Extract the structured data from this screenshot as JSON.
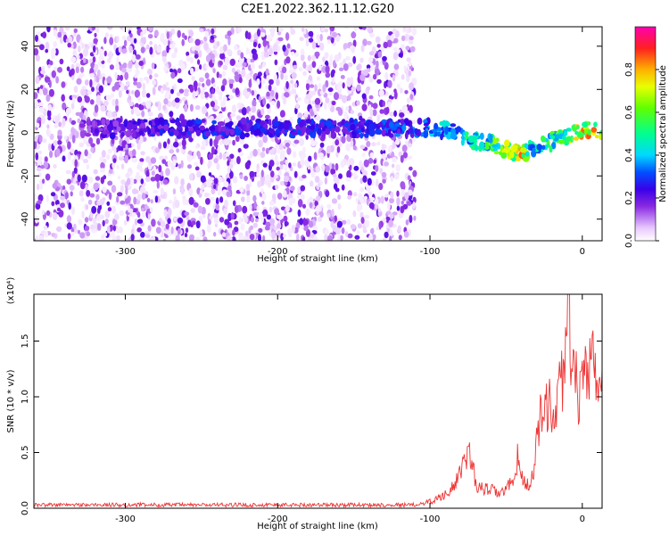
{
  "title": "C2E1.2022.362.11.12.G20",
  "chart_data": [
    {
      "type": "heatmap",
      "xlabel": "Height of straight line (km)",
      "ylabel": "Frequency (Hz)",
      "xlim": [
        -360,
        13
      ],
      "ylim": [
        -50,
        49
      ],
      "xticks": [
        -300,
        -200,
        -100,
        0
      ],
      "yticks": [
        -40,
        -20,
        0,
        20,
        40
      ],
      "colorbar": {
        "label": "Normalized spectral amplitude",
        "range": [
          0,
          1
        ],
        "ticks": [
          "0.0",
          "0.2",
          "0.4",
          "0.6",
          "0.8"
        ],
        "colormap": "rainbow (white → purple → blue → cyan → green → yellow → red)"
      },
      "ridge": {
        "x": [
          -330,
          -300,
          -250,
          -200,
          -150,
          -110,
          -100,
          -90,
          -80,
          -70,
          -60,
          -50,
          -40,
          -35,
          -30,
          -20,
          -10,
          0,
          13
        ],
        "frequency": [
          2,
          2,
          2,
          2,
          2,
          2,
          2,
          1,
          -1,
          -4,
          -5,
          -8,
          -10,
          -8,
          -6,
          -4,
          -2,
          1,
          1
        ],
        "amplitude": [
          0.2,
          0.25,
          0.3,
          0.3,
          0.3,
          0.35,
          0.4,
          0.45,
          0.5,
          0.55,
          0.6,
          0.75,
          0.9,
          0.55,
          0.5,
          0.6,
          0.7,
          0.85,
          0.9
        ]
      },
      "noise_region_x": [
        -360,
        -110
      ]
    },
    {
      "type": "line",
      "xlabel": "Height of straight line (km)",
      "ylabel": "SNR (10 * v/v)",
      "y_multiplier": "(x10⁴)",
      "xlim": [
        -360,
        13
      ],
      "ylim": [
        0,
        1.92
      ],
      "xticks": [
        -300,
        -200,
        -100,
        0
      ],
      "yticks": [
        "0.0",
        "0.5",
        "1.0",
        "1.5"
      ],
      "color": "#ee3333",
      "series": [
        {
          "x": [
            -360,
            -110,
            -100,
            -90,
            -80,
            -75,
            -72,
            -70,
            -65,
            -60,
            -55,
            -50,
            -45,
            -42,
            -40,
            -38,
            -35,
            -32,
            -30,
            -27,
            -25,
            -22,
            -20,
            -18,
            -15,
            -12,
            -10,
            -9,
            -7,
            -5,
            -3,
            -1,
            0,
            2,
            5,
            8,
            10,
            13
          ],
          "values": [
            0.03,
            0.03,
            0.06,
            0.12,
            0.3,
            0.52,
            0.42,
            0.2,
            0.17,
            0.17,
            0.13,
            0.16,
            0.28,
            0.48,
            0.28,
            0.24,
            0.2,
            0.3,
            0.68,
            0.88,
            0.75,
            1.02,
            0.75,
            0.85,
            1.1,
            1.25,
            1.62,
            1.92,
            1.1,
            1.2,
            1.05,
            1.0,
            1.05,
            1.15,
            1.2,
            1.35,
            1.1,
            1.12
          ]
        }
      ]
    }
  ]
}
